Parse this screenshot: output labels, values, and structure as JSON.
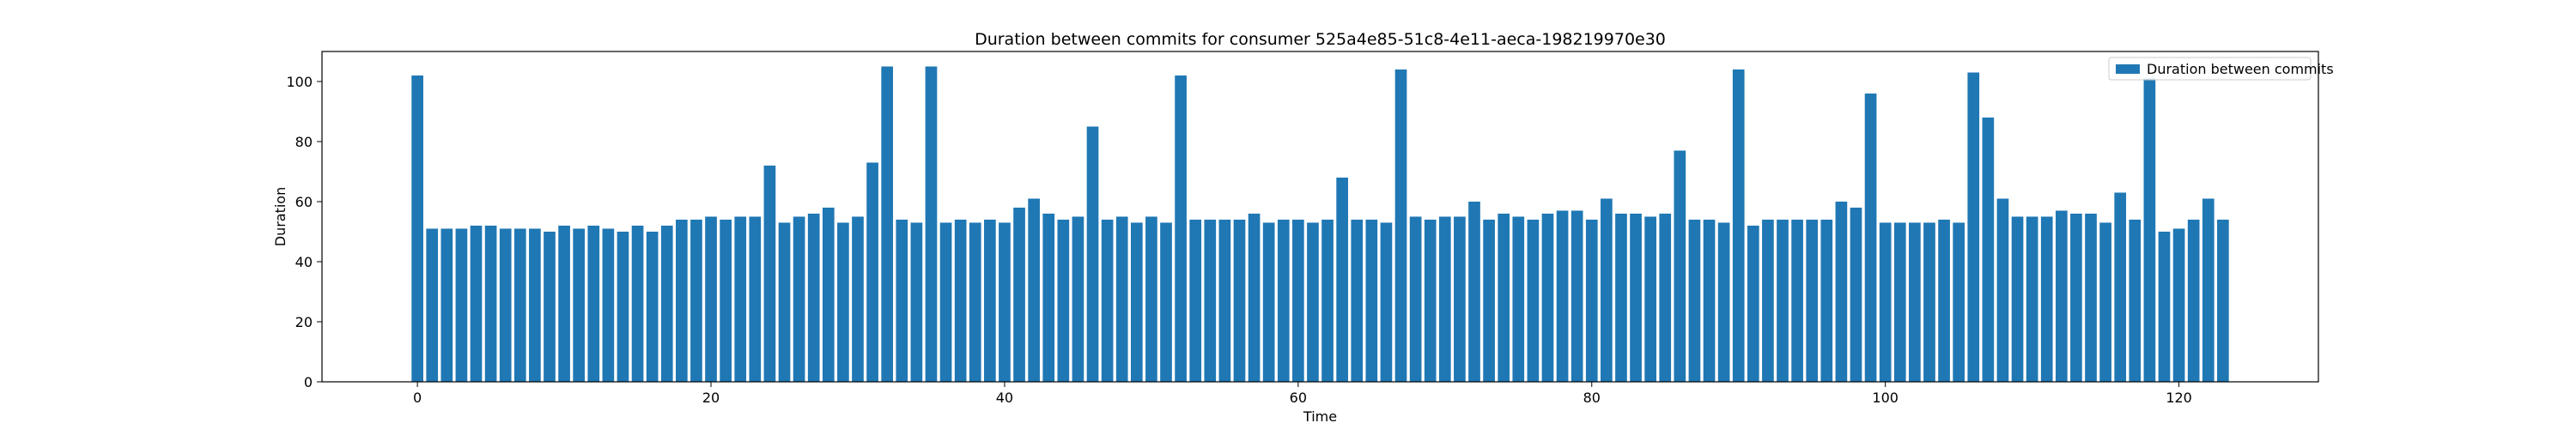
{
  "chart_data": {
    "type": "bar",
    "title": "Duration between commits for consumer 525a4e85-51c8-4e11-aeca-198219970e30",
    "xlabel": "Time",
    "ylabel": "Duration",
    "xlim": [
      -6.5,
      129.5
    ],
    "ylim": [
      0,
      110
    ],
    "xticks": [
      0,
      20,
      40,
      60,
      80,
      100,
      120
    ],
    "yticks": [
      0,
      20,
      40,
      60,
      80,
      100
    ],
    "legend_position": "top-right",
    "grid": false,
    "bar_color": "#1f77b4",
    "series": [
      {
        "name": "Duration between commits",
        "x_start": 0,
        "values": [
          102,
          51,
          51,
          51,
          52,
          52,
          51,
          51,
          51,
          50,
          52,
          51,
          52,
          51,
          50,
          52,
          50,
          52,
          54,
          54,
          55,
          54,
          55,
          55,
          72,
          53,
          55,
          56,
          58,
          53,
          55,
          73,
          105,
          54,
          53,
          105,
          53,
          54,
          53,
          54,
          53,
          58,
          61,
          56,
          54,
          55,
          85,
          54,
          55,
          53,
          55,
          53,
          102,
          54,
          54,
          54,
          54,
          56,
          53,
          54,
          54,
          53,
          54,
          68,
          54,
          54,
          53,
          104,
          55,
          54,
          55,
          55,
          60,
          54,
          56,
          55,
          54,
          56,
          57,
          57,
          54,
          61,
          56,
          56,
          55,
          56,
          77,
          54,
          54,
          53,
          104,
          52,
          54,
          54,
          54,
          54,
          54,
          60,
          58,
          96,
          53,
          53,
          53,
          53,
          54,
          53,
          103,
          88,
          61,
          55,
          55,
          55,
          57,
          56,
          56,
          53,
          63,
          54,
          101,
          50,
          51,
          54,
          61,
          54
        ]
      }
    ]
  }
}
